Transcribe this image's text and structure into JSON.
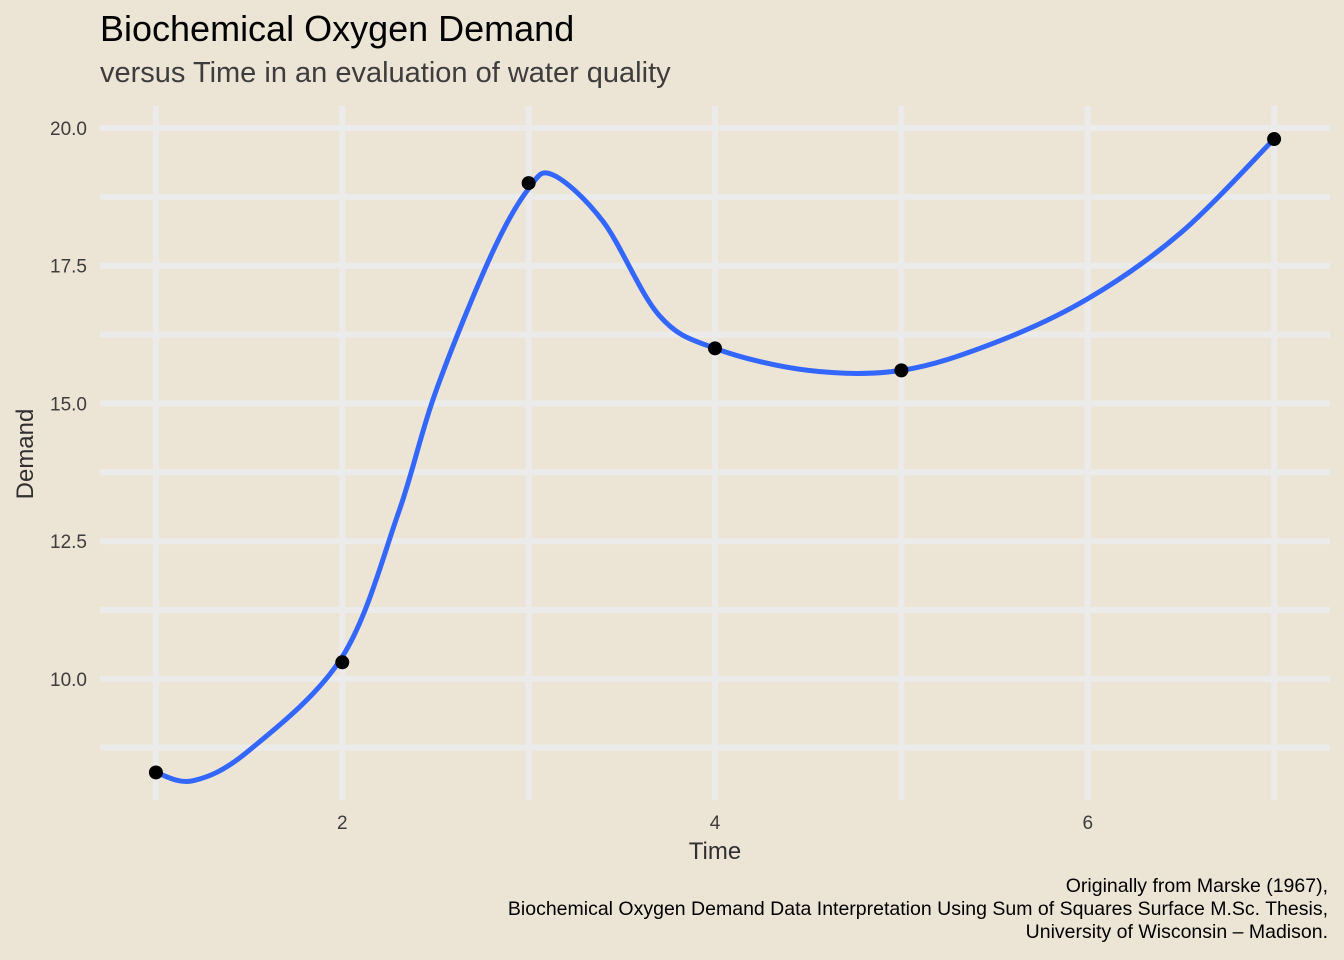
{
  "chart_data": {
    "type": "line",
    "title": "Biochemical Oxygen Demand",
    "subtitle": "versus Time in an evaluation of water quality",
    "xlabel": "Time",
    "ylabel": "Demand",
    "caption": [
      "Originally from Marske (1967),",
      "Biochemical Oxygen Demand Data Interpretation Using Sum of Squares Surface M.Sc. Thesis,",
      "University of Wisconsin – Madison."
    ],
    "points": {
      "x": [
        1,
        2,
        3,
        4,
        5,
        7
      ],
      "y": [
        8.3,
        10.3,
        19.0,
        16.0,
        15.6,
        19.8
      ]
    },
    "smooth_curve": {
      "x": [
        1.0,
        1.2,
        1.5,
        2.0,
        2.3,
        2.5,
        2.8,
        3.0,
        3.13,
        3.4,
        3.7,
        4.0,
        4.5,
        5.0,
        5.5,
        6.0,
        6.5,
        7.0
      ],
      "y": [
        8.3,
        8.15,
        8.7,
        10.4,
        13.0,
        15.2,
        17.7,
        18.9,
        19.15,
        18.3,
        16.6,
        16.0,
        15.6,
        15.6,
        16.1,
        16.9,
        18.1,
        19.8
      ]
    },
    "x_ticks": [
      2,
      4,
      6
    ],
    "x_tick_labels": [
      "2",
      "4",
      "6"
    ],
    "y_ticks": [
      10.0,
      12.5,
      15.0,
      17.5,
      20.0
    ],
    "y_tick_labels": [
      "10.0",
      "12.5",
      "15.0",
      "17.5",
      "20.0"
    ],
    "xlim": [
      0.7,
      7.3
    ],
    "ylim": [
      7.8,
      20.4
    ],
    "grid": true,
    "colors": {
      "background": "#ece5d6",
      "grid": "#ebebeb",
      "line": "#3366ff",
      "points": "#000000"
    }
  }
}
